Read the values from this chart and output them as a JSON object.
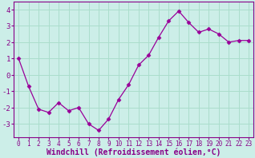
{
  "x": [
    0,
    1,
    2,
    3,
    4,
    5,
    6,
    7,
    8,
    9,
    10,
    11,
    12,
    13,
    14,
    15,
    16,
    17,
    18,
    19,
    20,
    21,
    22,
    23
  ],
  "y": [
    1.0,
    -0.7,
    -2.1,
    -2.3,
    -1.7,
    -2.2,
    -2.0,
    -3.0,
    -3.4,
    -2.7,
    -1.5,
    -0.6,
    0.6,
    1.2,
    2.3,
    3.3,
    3.9,
    3.2,
    2.6,
    2.8,
    2.5,
    2.0,
    2.1,
    2.1
  ],
  "line_color": "#990099",
  "marker": "D",
  "marker_size": 2.5,
  "bg_color": "#cceee8",
  "grid_color": "#aaddcc",
  "xlabel": "Windchill (Refroidissement éolien,°C)",
  "xlim": [
    -0.5,
    23.5
  ],
  "ylim": [
    -3.8,
    4.5
  ],
  "yticks": [
    -3,
    -2,
    -1,
    0,
    1,
    2,
    3,
    4
  ],
  "xtick_labels": [
    "0",
    "1",
    "2",
    "3",
    "4",
    "5",
    "6",
    "7",
    "8",
    "9",
    "10",
    "11",
    "12",
    "13",
    "14",
    "15",
    "16",
    "17",
    "18",
    "19",
    "20",
    "21",
    "22",
    "23"
  ],
  "tick_label_color": "#880088",
  "axis_color": "#880088",
  "xlabel_color": "#880088",
  "xlabel_fontsize": 7.0,
  "tick_fontsize": 5.5,
  "ytick_fontsize": 6.5
}
